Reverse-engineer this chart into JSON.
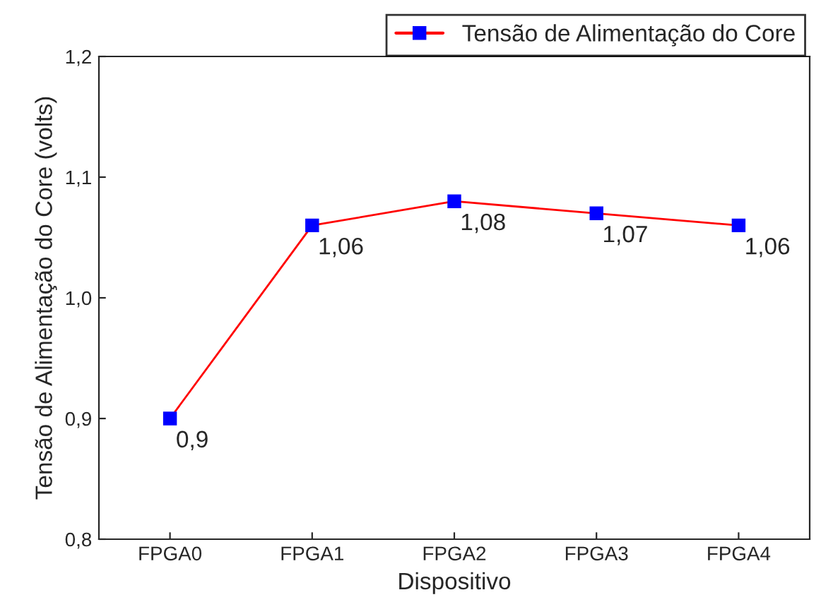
{
  "chart_data": {
    "type": "line",
    "xlabel": "Dispositivo",
    "ylabel": "Tensão de Alimentação do Core (volts)",
    "categories": [
      "FPGA0",
      "FPGA1",
      "FPGA2",
      "FPGA3",
      "FPGA4"
    ],
    "series": [
      {
        "name": "Tensão de Alimentação do Core",
        "color": "#ff0000",
        "values": [
          0.9,
          1.06,
          1.08,
          1.07,
          1.06
        ],
        "value_labels": [
          "0,9",
          "1,06",
          "1,08",
          "1,07",
          "1,06"
        ]
      }
    ],
    "ylim": [
      0.8,
      1.2
    ],
    "yticks": [
      {
        "value": 0.8,
        "label": "0,8"
      },
      {
        "value": 0.9,
        "label": "0,9"
      },
      {
        "value": 1.0,
        "label": "1,0"
      },
      {
        "value": 1.1,
        "label": "1,1"
      },
      {
        "value": 1.2,
        "label": "1,2"
      }
    ],
    "marker": "square",
    "line_style": "solid",
    "legend": "top right",
    "grid": false
  }
}
